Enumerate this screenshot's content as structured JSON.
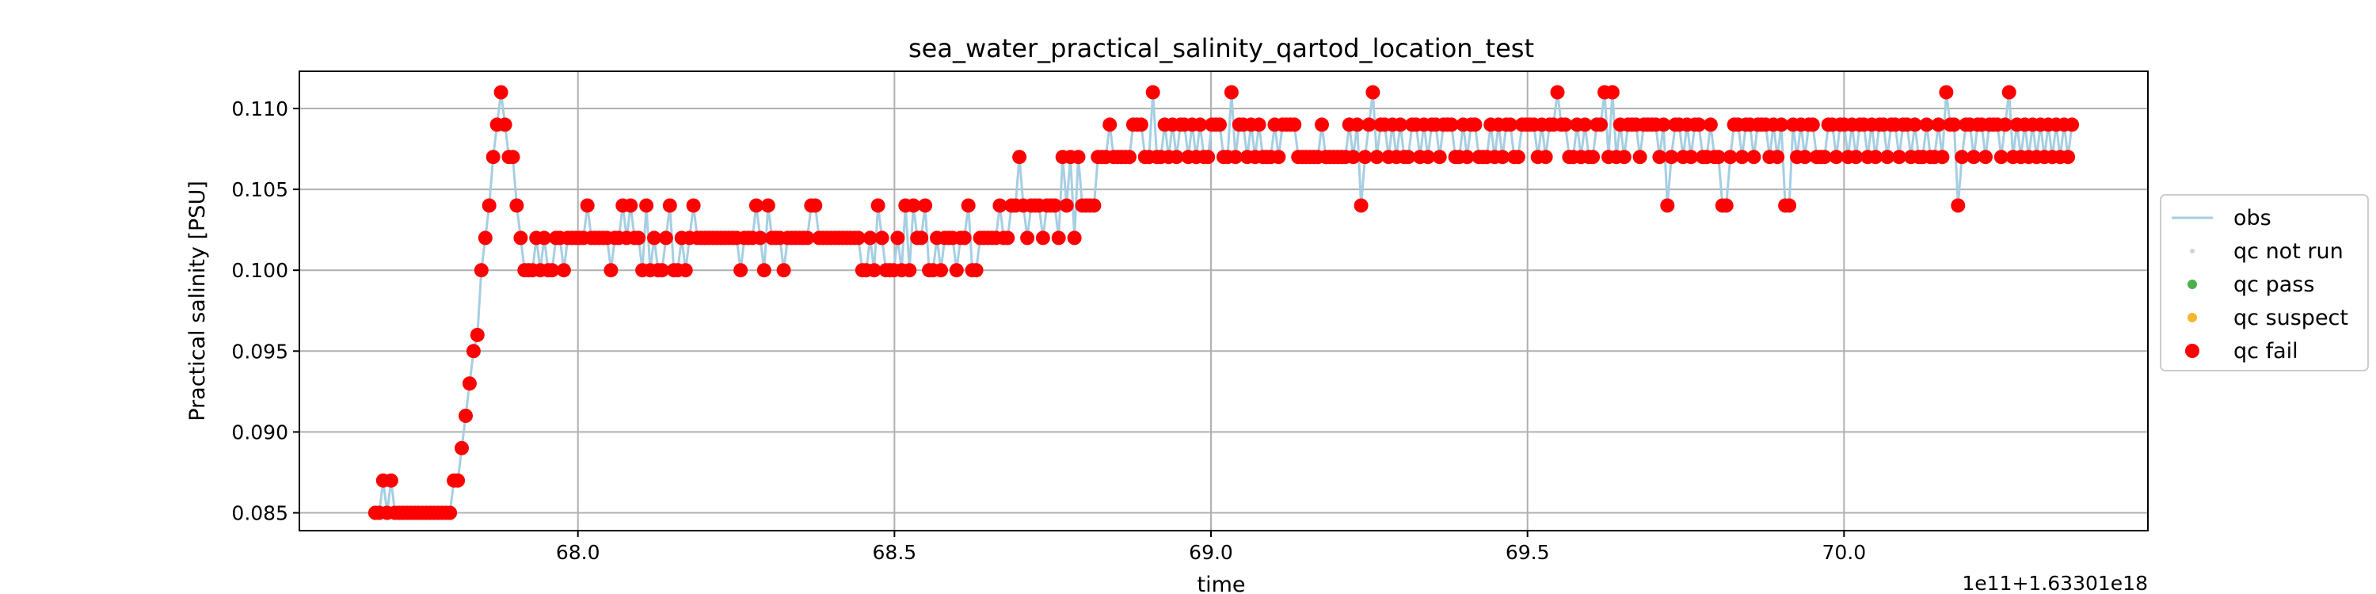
{
  "chart_data": {
    "type": "line",
    "title": "sea_water_practical_salinity_qartod_location_test",
    "xlabel": "time",
    "ylabel": "Practical salinity [PSU]",
    "x_offset_text": "1e11+1.63301e18",
    "xlim": [
      67.56,
      70.48
    ],
    "ylim": [
      0.0839,
      0.1123
    ],
    "xticks": [
      68.0,
      68.5,
      69.0,
      69.5,
      70.0
    ],
    "xtick_labels": [
      "68.0",
      "68.5",
      "69.0",
      "69.5",
      "70.0"
    ],
    "yticks": [
      0.085,
      0.09,
      0.095,
      0.1,
      0.105,
      0.11
    ],
    "ytick_labels": [
      "0.085",
      "0.090",
      "0.095",
      "0.100",
      "0.105",
      "0.110"
    ],
    "grid": true,
    "legend_position": "right-outside",
    "legend": [
      {
        "key": "obs",
        "label": "obs",
        "marker": "line",
        "color": "#a6cee3"
      },
      {
        "key": "not_run",
        "label": "qc not run",
        "marker": "small-dot",
        "color": "#d3d3d3"
      },
      {
        "key": "pass",
        "label": "qc pass",
        "marker": "dot",
        "color": "#4daf4a"
      },
      {
        "key": "suspect",
        "label": "qc suspect",
        "marker": "dot",
        "color": "#f5b72e"
      },
      {
        "key": "fail",
        "label": "qc fail",
        "marker": "big-dot",
        "color": "#ff0000"
      }
    ],
    "series": [
      {
        "name": "obs",
        "kind": "line",
        "color": "#a6cee3",
        "x_start": 67.68,
        "x_end": 70.36,
        "y": [
          0.085,
          0.085,
          0.087,
          0.085,
          0.087,
          0.085,
          0.085,
          0.085,
          0.085,
          0.085,
          0.085,
          0.085,
          0.085,
          0.085,
          0.085,
          0.085,
          0.085,
          0.085,
          0.085,
          0.085,
          0.087,
          0.087,
          0.089,
          0.091,
          0.093,
          0.095,
          0.096,
          0.1,
          0.102,
          0.104,
          0.107,
          0.109,
          0.111,
          0.109,
          0.107,
          0.107,
          0.104,
          0.102,
          0.1,
          0.1,
          0.1,
          0.102,
          0.1,
          0.102,
          0.1,
          0.1,
          0.102,
          0.102,
          0.1,
          0.102,
          0.102,
          0.102,
          0.102,
          0.102,
          0.104,
          0.102,
          0.102,
          0.102,
          0.102,
          0.102,
          0.1,
          0.102,
          0.102,
          0.104,
          0.102,
          0.104,
          0.102,
          0.102,
          0.1,
          0.104,
          0.1,
          0.102,
          0.1,
          0.1,
          0.102,
          0.104,
          0.1,
          0.1,
          0.102,
          0.1,
          0.102,
          0.104,
          0.102,
          0.102,
          0.102,
          0.102,
          0.102,
          0.102,
          0.102,
          0.102,
          0.102,
          0.102,
          0.102,
          0.1,
          0.102,
          0.102,
          0.102,
          0.104,
          0.102,
          0.1,
          0.104,
          0.102,
          0.102,
          0.102,
          0.1,
          0.102,
          0.102,
          0.102,
          0.102,
          0.102,
          0.102,
          0.104,
          0.104,
          0.102,
          0.102,
          0.102,
          0.102,
          0.102,
          0.102,
          0.102,
          0.102,
          0.102,
          0.102,
          0.102,
          0.1,
          0.1,
          0.102,
          0.1,
          0.104,
          0.102,
          0.1,
          0.1,
          0.1,
          0.102,
          0.1,
          0.104,
          0.1,
          0.104,
          0.102,
          0.102,
          0.104,
          0.1,
          0.1,
          0.102,
          0.1,
          0.102,
          0.102,
          0.102,
          0.1,
          0.102,
          0.102,
          0.104,
          0.1,
          0.1,
          0.102,
          0.102,
          0.102,
          0.102,
          0.102,
          0.104,
          0.102,
          0.102,
          0.104,
          0.104,
          0.107,
          0.104,
          0.102,
          0.104,
          0.104,
          0.104,
          0.102,
          0.104,
          0.104,
          0.104,
          0.102,
          0.107,
          0.104,
          0.107,
          0.102,
          0.107,
          0.104,
          0.104,
          0.104,
          0.104,
          0.107,
          0.107,
          0.107,
          0.109,
          0.107,
          0.107,
          0.107,
          0.107,
          0.107,
          0.109,
          0.109,
          0.109,
          0.107,
          0.107,
          0.111,
          0.107,
          0.107,
          0.109,
          0.107,
          0.109,
          0.107,
          0.109,
          0.109,
          0.107,
          0.109,
          0.107,
          0.109,
          0.107,
          0.107,
          0.109,
          0.109,
          0.109,
          0.107,
          0.107,
          0.111,
          0.107,
          0.109,
          0.109,
          0.107,
          0.109,
          0.107,
          0.109,
          0.107,
          0.107,
          0.107,
          0.109,
          0.107,
          0.109,
          0.109,
          0.109,
          0.109,
          0.107,
          0.107,
          0.107,
          0.107,
          0.107,
          0.107,
          0.109,
          0.107,
          0.107,
          0.107,
          0.107,
          0.107,
          0.107,
          0.109,
          0.107,
          0.109,
          0.104,
          0.107,
          0.109,
          0.111,
          0.107,
          0.109,
          0.109,
          0.107,
          0.109,
          0.107,
          0.109,
          0.107,
          0.107,
          0.109,
          0.109,
          0.107,
          0.109,
          0.107,
          0.109,
          0.109,
          0.107,
          0.109,
          0.109,
          0.109,
          0.107,
          0.107,
          0.109,
          0.107,
          0.109,
          0.109,
          0.107,
          0.107,
          0.107,
          0.109,
          0.107,
          0.109,
          0.107,
          0.109,
          0.109,
          0.107,
          0.107,
          0.109,
          0.109,
          0.109,
          0.109,
          0.107,
          0.109,
          0.107,
          0.109,
          0.109,
          0.111,
          0.109,
          0.109,
          0.107,
          0.107,
          0.109,
          0.107,
          0.109,
          0.107,
          0.107,
          0.109,
          0.109,
          0.111,
          0.107,
          0.111,
          0.107,
          0.109,
          0.107,
          0.109,
          0.109,
          0.109,
          0.107,
          0.109,
          0.109,
          0.109,
          0.109,
          0.107,
          0.109,
          0.104,
          0.107,
          0.109,
          0.109,
          0.107,
          0.109,
          0.107,
          0.109,
          0.109,
          0.107,
          0.107,
          0.109,
          0.107,
          0.107,
          0.104,
          0.104,
          0.107,
          0.109,
          0.109,
          0.107,
          0.109,
          0.109,
          0.107,
          0.109,
          0.109,
          0.109,
          0.107,
          0.109,
          0.107,
          0.109,
          0.104,
          0.104,
          0.109,
          0.107,
          0.109,
          0.107,
          0.109,
          0.109,
          0.107,
          0.107,
          0.107,
          0.109,
          0.109,
          0.107,
          0.109,
          0.109,
          0.107,
          0.109,
          0.107,
          0.109,
          0.109,
          0.107,
          0.109,
          0.107,
          0.109,
          0.109,
          0.107,
          0.109,
          0.109,
          0.107,
          0.109,
          0.109,
          0.107,
          0.109,
          0.107,
          0.107,
          0.109,
          0.107,
          0.107,
          0.109,
          0.107,
          0.111,
          0.109,
          0.109,
          0.104,
          0.107,
          0.109,
          0.109,
          0.107,
          0.109,
          0.109,
          0.107,
          0.109,
          0.109,
          0.109,
          0.107,
          0.109,
          0.111,
          0.107,
          0.109,
          0.107,
          0.109,
          0.107,
          0.109,
          0.107,
          0.109,
          0.107,
          0.109,
          0.107,
          0.109,
          0.107,
          0.109,
          0.107,
          0.109
        ]
      },
      {
        "name": "qc fail",
        "kind": "scatter",
        "color": "#ff0000",
        "same_points_as": "obs"
      }
    ]
  }
}
